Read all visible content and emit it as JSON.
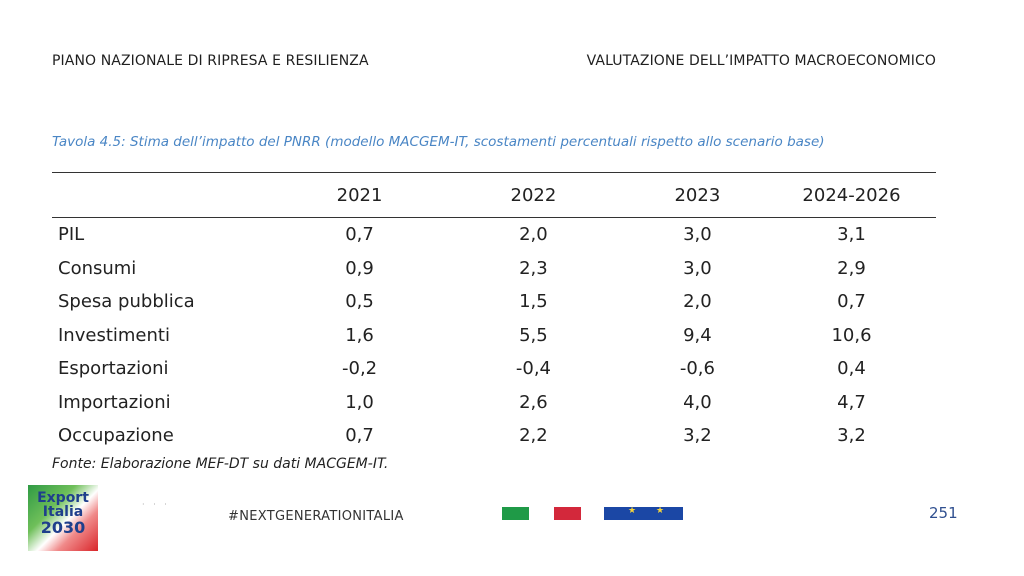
{
  "header": {
    "left": "PIANO NAZIONALE DI RIPRESA E RESILIENZA",
    "right": "VALUTAZIONE DELL’IMPATTO MACROECONOMICO"
  },
  "caption": "Tavola 4.5: Stima dell’impatto del PNRR (modello MACGEM-IT, scostamenti percentuali rispetto allo scenario base)",
  "table": {
    "columns": [
      "2021",
      "2022",
      "2023",
      "2024-2026"
    ],
    "rows": [
      {
        "label": "PIL",
        "values": [
          "0,7",
          "2,0",
          "3,0",
          "3,1"
        ]
      },
      {
        "label": "Consumi",
        "values": [
          "0,9",
          "2,3",
          "3,0",
          "2,9"
        ]
      },
      {
        "label": "Spesa pubblica",
        "values": [
          "0,5",
          "1,5",
          "2,0",
          "0,7"
        ]
      },
      {
        "label": "Investimenti",
        "values": [
          "1,6",
          "5,5",
          "9,4",
          "10,6"
        ]
      },
      {
        "label": "Esportazioni",
        "values": [
          "-0,2",
          "-0,4",
          "-0,6",
          "0,4"
        ]
      },
      {
        "label": "Importazioni",
        "values": [
          "1,0",
          "2,6",
          "4,0",
          "4,7"
        ]
      },
      {
        "label": "Occupazione",
        "values": [
          "0,7",
          "2,2",
          "3,2",
          "3,2"
        ]
      }
    ]
  },
  "source": "Fonte: Elaborazione MEF-DT su dati MACGEM-IT.",
  "footer": {
    "logo_line1": "Export",
    "logo_line2": "Italia",
    "logo_line3": "2030",
    "hashtag": "#NEXTGENERATIONITALIA",
    "page_number": "251",
    "colors": {
      "green": "#1f9a47",
      "red": "#d3283b",
      "eu_blue": "#1b47a5"
    }
  }
}
